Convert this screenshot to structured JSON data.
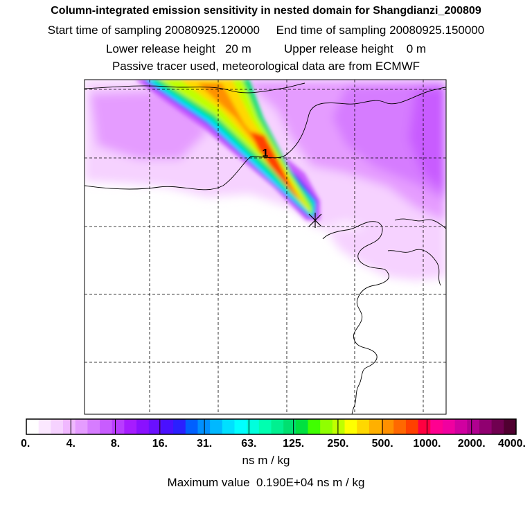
{
  "header": {
    "title": "Column-integrated emission sensitivity in nested domain for Shangdianzi_200809",
    "sampling_start_label": "Start time of sampling",
    "sampling_start": "20080925.120000",
    "sampling_end_label": "End time of sampling",
    "sampling_end": "20080925.150000",
    "lower_release_label": "Lower release height",
    "lower_release": "20 m",
    "upper_release_label": "Upper release height",
    "upper_release": "0 m",
    "subtitle": "Passive tracer used, meteorological data are from ECMWF"
  },
  "map": {
    "marker_label": "1",
    "colors": {
      "frame": "#000000",
      "coast": "#000000",
      "grid": "#000000"
    }
  },
  "chart_data": {
    "type": "heatmap",
    "title": "Column-integrated emission sensitivity in nested domain for Shangdianzi_200809",
    "colorbar_tick_labels": [
      "0.",
      "4.",
      "8.",
      "16.",
      "31.",
      "63.",
      "125.",
      "250.",
      "500.",
      "1000.",
      "2000.",
      "4000."
    ],
    "colorbar_tick_values": [
      0,
      4,
      8,
      16,
      31,
      63,
      125,
      250,
      500,
      1000,
      2000,
      4000
    ],
    "colorbar_colors": [
      "#ffffff",
      "#fbe8ff",
      "#f6d2ff",
      "#f0b8ff",
      "#e59cff",
      "#d67cff",
      "#c85cff",
      "#b83cff",
      "#a61cff",
      "#8a10ff",
      "#6a10ff",
      "#4a10ff",
      "#2a20ff",
      "#0060ff",
      "#0090ff",
      "#00b8ff",
      "#00e0ff",
      "#00ffff",
      "#00ffdd",
      "#00ffb0",
      "#00f090",
      "#00e070",
      "#00e040",
      "#40ff00",
      "#90ff00",
      "#c0ff00",
      "#ffff00",
      "#ffd800",
      "#ffb000",
      "#ff9000",
      "#ff6800",
      "#ff4000",
      "#ff0040",
      "#ff0090",
      "#f000a0",
      "#d000a0",
      "#b00090",
      "#900070",
      "#700050",
      "#500030"
    ],
    "unit": "ns m / kg",
    "max_label": "Maximum value",
    "max_value": "0.190E+04",
    "max_unit": "ns m / kg",
    "release_point": "Shangdianzi"
  }
}
